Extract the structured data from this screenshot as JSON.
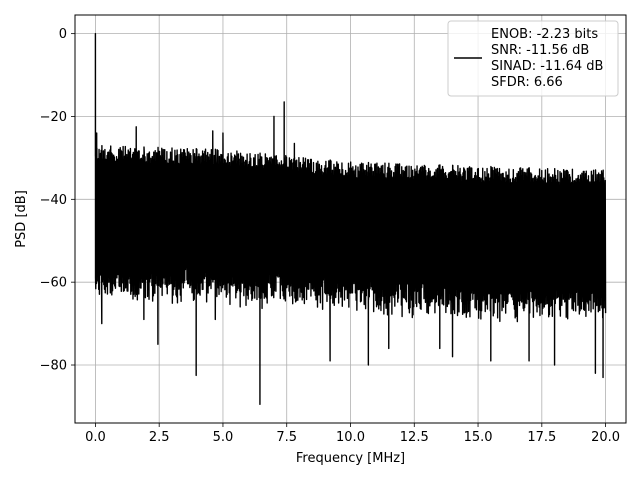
{
  "chart_data": {
    "type": "line",
    "xlabel": "Frequency [MHz]",
    "ylabel": "PSD [dB]",
    "xlim": [
      -0.8,
      20.8
    ],
    "ylim": [
      -94,
      4.5
    ],
    "xticks": [
      0.0,
      2.5,
      5.0,
      7.5,
      10.0,
      12.5,
      15.0,
      17.5,
      20.0
    ],
    "xtick_labels": [
      "0.0",
      "2.5",
      "5.0",
      "7.5",
      "10.0",
      "12.5",
      "15.0",
      "17.5",
      "20.0"
    ],
    "yticks": [
      0,
      -20,
      -40,
      -60,
      -80
    ],
    "ytick_labels": [
      "0",
      "−20",
      "−40",
      "−60",
      "−80"
    ],
    "grid": true,
    "legend_position": "top-right",
    "series": [
      {
        "name": "ENOB: -2.23 bits\nSNR: -11.56 dB\nSINAD: -11.64 dB\nSFDR: 6.66",
        "color": "#000000",
        "x_range": [
          0,
          20
        ],
        "noise_band": {
          "upper": [
            [
              0.0,
              -27
            ],
            [
              5.0,
              -28
            ],
            [
              10.0,
              -31
            ],
            [
              15.0,
              -32
            ],
            [
              20.0,
              -33
            ]
          ],
          "lower": [
            [
              0.0,
              -59
            ],
            [
              5.0,
              -60
            ],
            [
              10.0,
              -62
            ],
            [
              15.0,
              -64
            ],
            [
              20.0,
              -64
            ]
          ]
        },
        "peaks": [
          {
            "x": 0.0,
            "y": 0
          },
          {
            "x": 0.05,
            "y": -24
          },
          {
            "x": 1.6,
            "y": -22.5
          },
          {
            "x": 4.6,
            "y": -23.5
          },
          {
            "x": 5.0,
            "y": -24
          },
          {
            "x": 7.0,
            "y": -20
          },
          {
            "x": 7.4,
            "y": -16.5
          },
          {
            "x": 7.8,
            "y": -26.5
          }
        ],
        "dips": [
          {
            "x": 0.25,
            "y": -70
          },
          {
            "x": 1.9,
            "y": -69
          },
          {
            "x": 2.45,
            "y": -75
          },
          {
            "x": 3.95,
            "y": -82.5
          },
          {
            "x": 4.7,
            "y": -69
          },
          {
            "x": 6.45,
            "y": -89.5
          },
          {
            "x": 9.2,
            "y": -79
          },
          {
            "x": 10.7,
            "y": -80
          },
          {
            "x": 11.5,
            "y": -76
          },
          {
            "x": 13.5,
            "y": -76
          },
          {
            "x": 14.0,
            "y": -78
          },
          {
            "x": 15.5,
            "y": -79
          },
          {
            "x": 17.0,
            "y": -79
          },
          {
            "x": 18.0,
            "y": -80
          },
          {
            "x": 19.6,
            "y": -82
          },
          {
            "x": 19.9,
            "y": -83
          }
        ]
      }
    ]
  }
}
